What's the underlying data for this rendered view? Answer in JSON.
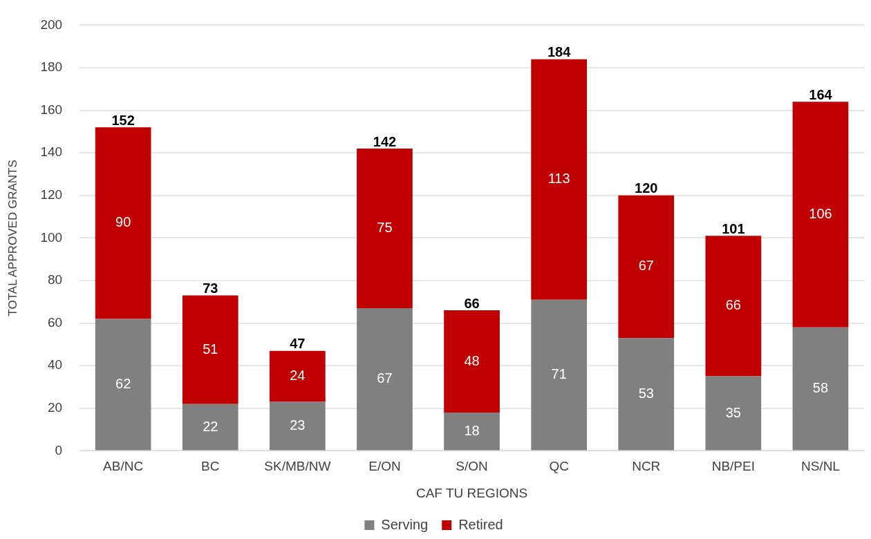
{
  "chart_data": {
    "type": "bar",
    "stacked": true,
    "xlabel": "CAF TU REGIONS",
    "ylabel": "TOTAL APPROVED GRANTS",
    "categories": [
      "AB/NC",
      "BC",
      "SK/MB/NW",
      "E/ON",
      "S/ON",
      "QC",
      "NCR",
      "NB/PEI",
      "NS/NL"
    ],
    "series": [
      {
        "name": "Serving",
        "color": "#808080",
        "values": [
          62,
          22,
          23,
          67,
          18,
          71,
          53,
          35,
          58
        ]
      },
      {
        "name": "Retired",
        "color": "#c00000",
        "values": [
          90,
          51,
          24,
          75,
          48,
          113,
          67,
          66,
          106
        ]
      }
    ],
    "totals": [
      "152",
      "73",
      "47",
      "142",
      "66",
      "184",
      "120",
      "101",
      "164"
    ],
    "data_labels": true,
    "ylim": [
      0,
      200
    ],
    "yticks": [
      0,
      20,
      40,
      60,
      80,
      100,
      120,
      140,
      160,
      180,
      200
    ],
    "grid": "y",
    "legend": "bottom"
  }
}
